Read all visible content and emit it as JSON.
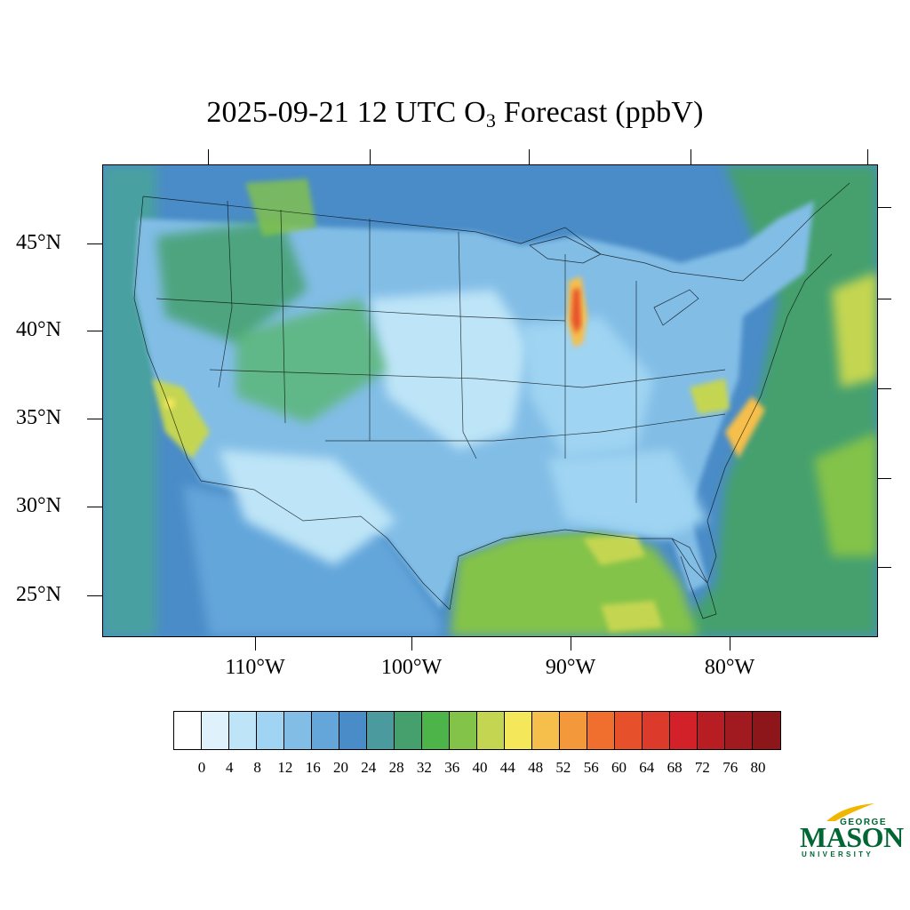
{
  "title": {
    "prefix": "2025-09-21 12 UTC O",
    "subscript": "3",
    "suffix": " Forecast (ppbV)"
  },
  "map": {
    "lat_labels": [
      "45°N",
      "40°N",
      "35°N",
      "30°N",
      "25°N"
    ],
    "lon_labels": [
      "110°W",
      "100°W",
      "90°W",
      "80°W"
    ],
    "ozone_levels": [
      {
        "name": "Lake Michigan plume",
        "value": 60
      },
      {
        "name": "North Carolina coast",
        "value": 52
      },
      {
        "name": "Gulf of Mexico",
        "value": 40
      },
      {
        "name": "Atlantic offshore",
        "value": 44
      }
    ]
  },
  "colorbar": {
    "colors": [
      "#ffffff",
      "#dff1fb",
      "#bde4f7",
      "#9fd4f2",
      "#82bde6",
      "#64a6da",
      "#4a8cc7",
      "#4a9a9e",
      "#45a06e",
      "#4cb449",
      "#84c34a",
      "#c4d651",
      "#f4e75a",
      "#f6bf4c",
      "#f4983c",
      "#f06f2e",
      "#e6502a",
      "#dc3a2a",
      "#d32129",
      "#b81d24",
      "#a01a1f",
      "#8c161a"
    ],
    "labels": [
      "0",
      "4",
      "8",
      "12",
      "16",
      "20",
      "24",
      "28",
      "32",
      "36",
      "40",
      "44",
      "48",
      "52",
      "56",
      "60",
      "64",
      "68",
      "72",
      "76",
      "80"
    ]
  },
  "logo": {
    "line1": "GEORGE",
    "line2": "MASON",
    "line3": "UNIVERSITY",
    "color": "#006633",
    "accent": "#f2b500"
  }
}
